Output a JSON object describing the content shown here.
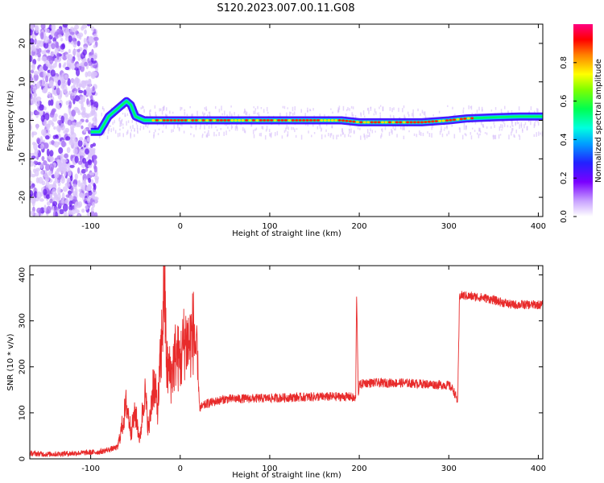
{
  "figure": {
    "title": "S120.2023.007.00.11.G08"
  },
  "chart_data": [
    {
      "type": "heatmap",
      "xlabel": "Height of straight line (km)",
      "ylabel": "Frequency (Hz)",
      "xlim": [
        -168,
        405
      ],
      "ylim": [
        -25,
        25
      ],
      "xticks": [
        -100,
        0,
        100,
        200,
        300,
        400
      ],
      "yticks": [
        -20,
        -10,
        0,
        10,
        20
      ],
      "colorbar": {
        "label": "Normalized spectral amplitude",
        "range": [
          0.0,
          1.0
        ],
        "ticks": [
          0.0,
          0.2,
          0.4,
          0.6,
          0.8
        ],
        "tick_labels": [
          "0.0",
          "0.2",
          "0.4",
          "0.6",
          "0.8"
        ]
      },
      "frequency_track": {
        "x": [
          -100,
          -95,
          -90,
          -85,
          -80,
          -75,
          -70,
          -65,
          -60,
          -55,
          -50,
          -40,
          -30,
          -20,
          0,
          50,
          100,
          150,
          180,
          200,
          250,
          270,
          300,
          320,
          350,
          380,
          405
        ],
        "y": [
          -3,
          -3,
          -3,
          -1,
          1,
          2,
          3,
          4,
          5,
          4,
          1,
          0,
          0,
          0,
          0,
          0,
          0,
          0,
          0,
          -0.5,
          -0.5,
          -0.5,
          0,
          0.5,
          0.8,
          1,
          1
        ]
      },
      "grid": false
    },
    {
      "type": "line",
      "xlabel": "Height of straight line (km)",
      "ylabel": "SNR (10 * v/v)",
      "xlim": [
        -168,
        405
      ],
      "ylim": [
        0,
        420
      ],
      "xticks": [
        -100,
        0,
        100,
        200,
        300,
        400
      ],
      "yticks": [
        0,
        100,
        200,
        300,
        400
      ],
      "series": [
        {
          "color": "#e82b2b",
          "x": [
            -168,
            -150,
            -120,
            -90,
            -70,
            -65,
            -60,
            -55,
            -50,
            -45,
            -40,
            -35,
            -30,
            -25,
            -20,
            -18,
            -15,
            -10,
            -5,
            0,
            5,
            10,
            15,
            18,
            20,
            22,
            30,
            50,
            100,
            150,
            190,
            196,
            197,
            199,
            200,
            205,
            250,
            300,
            305,
            310,
            312,
            315,
            340,
            370,
            405
          ],
          "y": [
            12,
            10,
            12,
            15,
            25,
            70,
            120,
            60,
            100,
            40,
            150,
            60,
            170,
            110,
            280,
            400,
            200,
            180,
            230,
            210,
            260,
            250,
            280,
            230,
            170,
            110,
            120,
            130,
            132,
            135,
            135,
            130,
            360,
            140,
            160,
            165,
            165,
            160,
            150,
            125,
            355,
            355,
            350,
            335,
            335
          ]
        }
      ],
      "grid": false
    }
  ]
}
